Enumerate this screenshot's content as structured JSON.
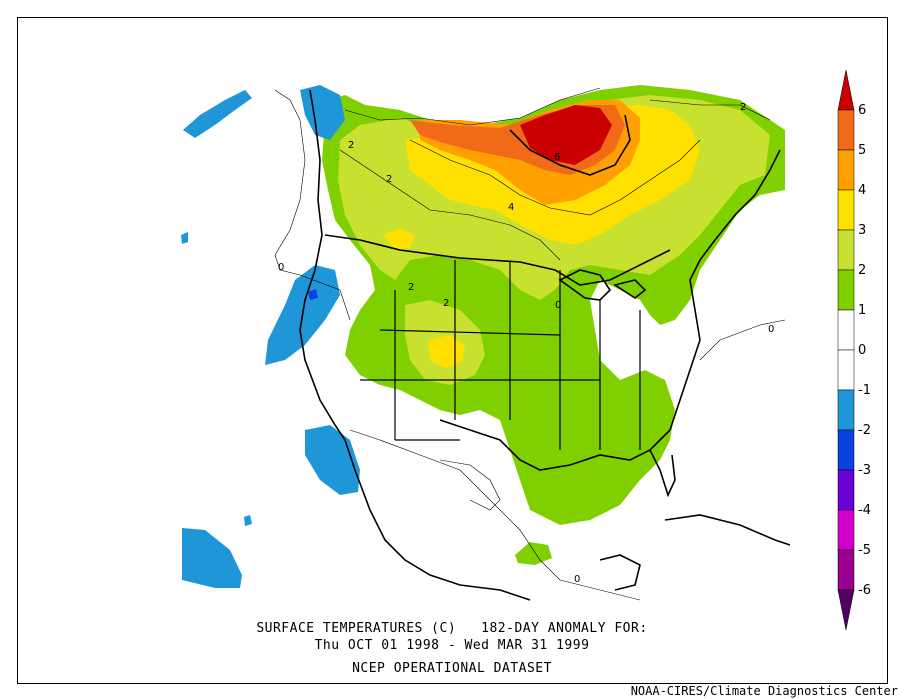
{
  "map": {
    "caption_line1": "SURFACE TEMPERATURES (C)   182-DAY ANOMALY FOR:",
    "caption_line2": "Thu OCT 01 1998 - Wed MAR 31 1999",
    "dataset": "NCEP OPERATIONAL DATASET",
    "credit": "NOAA-CIRES/Climate Diagnostics Center",
    "contour_labels": [
      "2",
      "2",
      "2",
      "6",
      "4",
      "2",
      "2",
      "0",
      "0",
      "0",
      "0"
    ]
  },
  "colorbar": {
    "levels": [
      {
        "label": "6",
        "color": "#cc0000"
      },
      {
        "label": "5",
        "color": "#f06a18"
      },
      {
        "label": "4",
        "color": "#ffa000"
      },
      {
        "label": "3",
        "color": "#ffe000"
      },
      {
        "label": "2",
        "color": "#c8e030"
      },
      {
        "label": "1",
        "color": "#80d000"
      },
      {
        "label": "0",
        "color": "#ffffff"
      },
      {
        "label": "-1",
        "color": "#ffffff"
      },
      {
        "label": "-2",
        "color": "#1e96d8"
      },
      {
        "label": "-3",
        "color": "#0c40e0"
      },
      {
        "label": "-4",
        "color": "#6a00d8"
      },
      {
        "label": "-5",
        "color": "#d000c8"
      },
      {
        "label": "-6",
        "color": "#9a0090"
      },
      {
        "label": "",
        "color": "#500060"
      }
    ]
  }
}
